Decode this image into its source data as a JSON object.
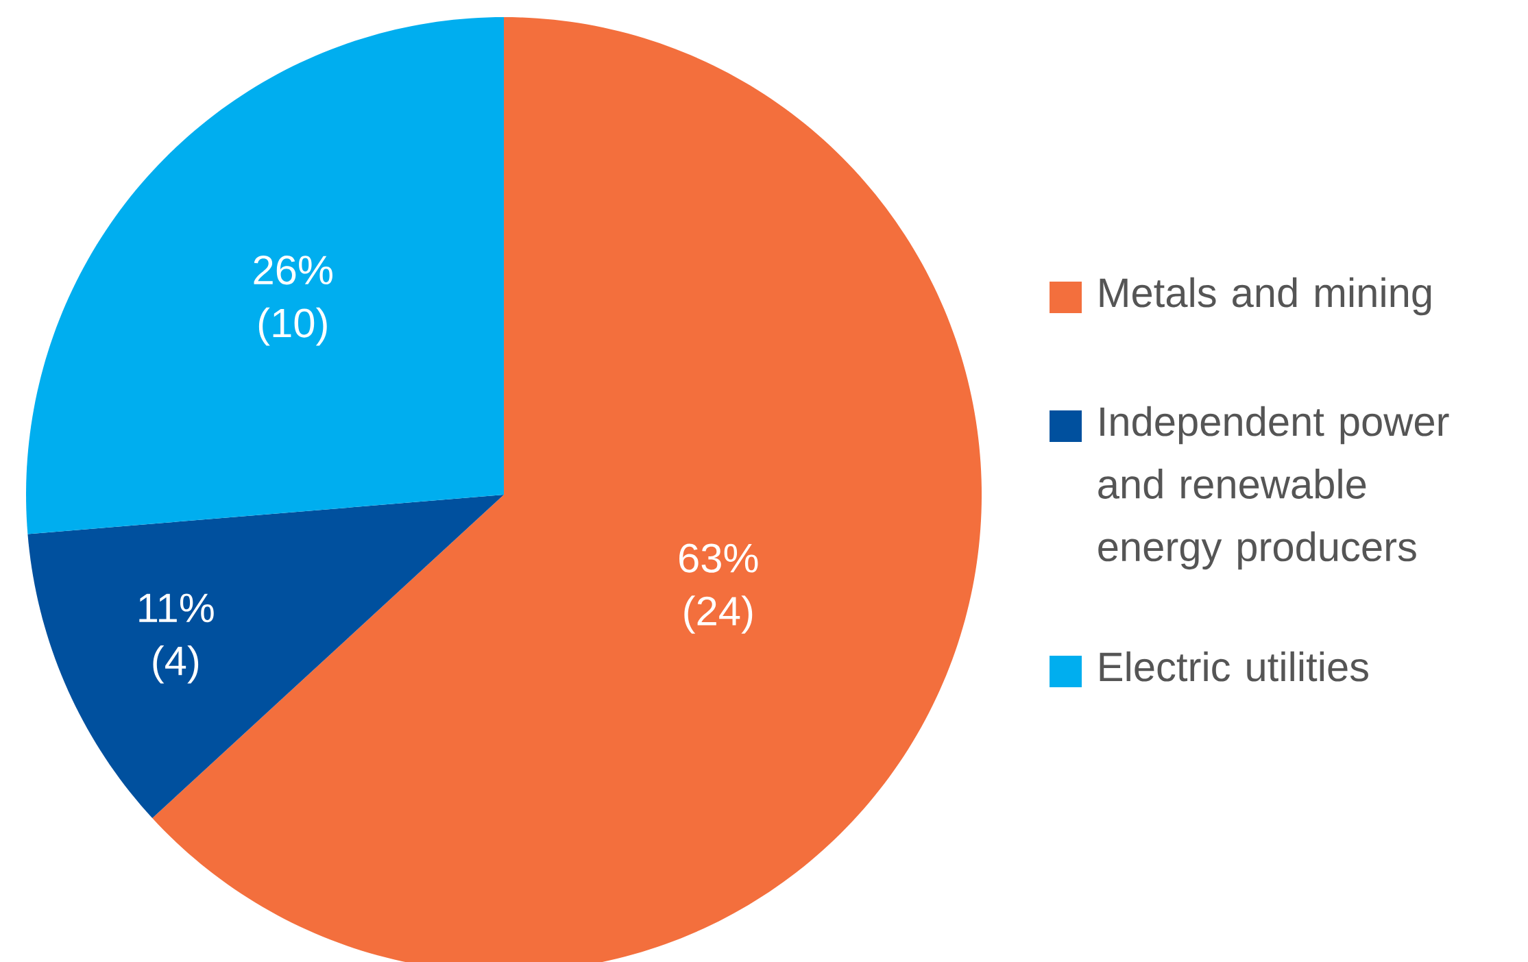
{
  "chart_data": {
    "type": "pie",
    "categories": [
      "Metals and mining",
      "Independent power and renewable energy producers",
      "Electric utilities"
    ],
    "values": [
      24,
      4,
      10
    ],
    "colors": [
      "#f36f3d",
      "#00509e",
      "#00aeef"
    ],
    "value_labels": [
      "63% (24)",
      "11% (4)",
      "26% (10)"
    ],
    "legend": "right"
  }
}
